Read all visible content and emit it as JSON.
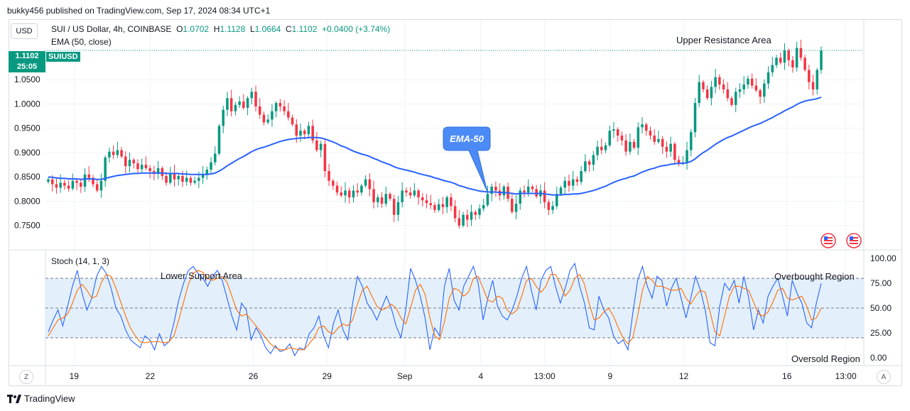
{
  "header": {
    "caption": "bukky456 published on TradingView.com, Sep 17, 2024 08:34 UTC+1",
    "currency": "USD",
    "symbol": "SUI / US Dollar, 4h, COINBASE",
    "open_label": "O",
    "open": "1.0702",
    "high_label": "H",
    "high": "1.1128",
    "low_label": "L",
    "low": "1.0664",
    "close_label": "C",
    "close": "1.1102",
    "change": "+0.0400 (+3.74%)",
    "indicator": "EMA (50, close)"
  },
  "price_tag": {
    "price": "1.1102",
    "countdown": "25:05",
    "symbol": "SUIUSD"
  },
  "branding": "TradingView",
  "buttons": {
    "zoom": "Z",
    "auto": "A"
  },
  "colors": {
    "up": "#089981",
    "down": "#f23645",
    "ema": "#2962ff",
    "stoch_k": "#2962ff",
    "stoch_d": "#ff6d00",
    "band": "#e3f0fb"
  },
  "chart_data": [
    {
      "type": "candlestick",
      "ylim": [
        0.7,
        1.17
      ],
      "y_ticks": [
        "1.0500",
        "1.0000",
        "0.9500",
        "0.9000",
        "0.8500",
        "0.8000",
        "0.7500"
      ],
      "y_tick_values": [
        1.05,
        1.0,
        0.95,
        0.9,
        0.85,
        0.8,
        0.75
      ],
      "x_ticks": [
        "19",
        "22",
        "26",
        "29",
        "Sep",
        "4",
        "13:00",
        "9",
        "12",
        "16",
        "13:00"
      ],
      "last_price": 1.1102,
      "annotations": [
        "Upper Resistance Area",
        "EMA-50"
      ],
      "closes": [
        0.845,
        0.835,
        0.828,
        0.838,
        0.832,
        0.826,
        0.842,
        0.838,
        0.83,
        0.855,
        0.848,
        0.835,
        0.822,
        0.842,
        0.89,
        0.902,
        0.895,
        0.905,
        0.892,
        0.872,
        0.885,
        0.878,
        0.866,
        0.875,
        0.868,
        0.862,
        0.856,
        0.868,
        0.852,
        0.838,
        0.858,
        0.845,
        0.852,
        0.84,
        0.848,
        0.838,
        0.842,
        0.848,
        0.855,
        0.865,
        0.88,
        0.898,
        0.955,
        0.988,
        1.012,
        0.985,
        0.998,
        1.005,
        0.992,
        1.012,
        1.025,
        0.995,
        0.978,
        0.962,
        0.968,
        0.985,
        1.002,
        0.995,
        0.985,
        0.972,
        0.958,
        0.935,
        0.945,
        0.938,
        0.955,
        0.925,
        0.905,
        0.918,
        0.862,
        0.842,
        0.832,
        0.818,
        0.812,
        0.822,
        0.808,
        0.822,
        0.818,
        0.832,
        0.845,
        0.825,
        0.798,
        0.808,
        0.795,
        0.815,
        0.805,
        0.772,
        0.798,
        0.822,
        0.818,
        0.812,
        0.822,
        0.808,
        0.802,
        0.796,
        0.792,
        0.782,
        0.794,
        0.788,
        0.808,
        0.79,
        0.765,
        0.75,
        0.772,
        0.762,
        0.778,
        0.772,
        0.785,
        0.792,
        0.815,
        0.83,
        0.822,
        0.812,
        0.83,
        0.805,
        0.778,
        0.795,
        0.822,
        0.818,
        0.83,
        0.825,
        0.81,
        0.822,
        0.798,
        0.782,
        0.79,
        0.815,
        0.828,
        0.842,
        0.832,
        0.845,
        0.84,
        0.862,
        0.882,
        0.875,
        0.895,
        0.912,
        0.905,
        0.915,
        0.945,
        0.948,
        0.935,
        0.925,
        0.902,
        0.922,
        0.91,
        0.952,
        0.958,
        0.945,
        0.935,
        0.922,
        0.928,
        0.912,
        0.902,
        0.918,
        0.885,
        0.878,
        0.88,
        0.905,
        0.942,
        1.002,
        1.045,
        1.03,
        1.012,
        1.035,
        1.055,
        1.04,
        1.03,
        1.012,
        0.998,
        1.025,
        1.03,
        1.04,
        1.052,
        1.038,
        1.028,
        1.015,
        1.042,
        1.065,
        1.08,
        1.095,
        1.085,
        1.11,
        1.09,
        1.075,
        1.115,
        1.095,
        1.07,
        1.045,
        1.03,
        1.07,
        1.11
      ],
      "ema": [
        0.85,
        0.849,
        0.848,
        0.847,
        0.847,
        0.846,
        0.846,
        0.846,
        0.845,
        0.846,
        0.846,
        0.846,
        0.845,
        0.845,
        0.847,
        0.849,
        0.851,
        0.853,
        0.854,
        0.855,
        0.856,
        0.857,
        0.857,
        0.858,
        0.858,
        0.858,
        0.858,
        0.858,
        0.858,
        0.857,
        0.857,
        0.857,
        0.857,
        0.856,
        0.856,
        0.855,
        0.855,
        0.855,
        0.855,
        0.855,
        0.856,
        0.858,
        0.862,
        0.867,
        0.873,
        0.878,
        0.883,
        0.888,
        0.892,
        0.897,
        0.902,
        0.906,
        0.909,
        0.911,
        0.914,
        0.917,
        0.92,
        0.923,
        0.925,
        0.927,
        0.928,
        0.929,
        0.93,
        0.93,
        0.931,
        0.931,
        0.931,
        0.93,
        0.928,
        0.925,
        0.922,
        0.918,
        0.914,
        0.911,
        0.907,
        0.903,
        0.9,
        0.897,
        0.895,
        0.892,
        0.888,
        0.885,
        0.881,
        0.878,
        0.875,
        0.871,
        0.868,
        0.866,
        0.864,
        0.862,
        0.86,
        0.857,
        0.855,
        0.853,
        0.851,
        0.848,
        0.846,
        0.843,
        0.841,
        0.839,
        0.836,
        0.832,
        0.83,
        0.827,
        0.825,
        0.823,
        0.821,
        0.82,
        0.819,
        0.819,
        0.819,
        0.818,
        0.818,
        0.817,
        0.816,
        0.815,
        0.816,
        0.816,
        0.816,
        0.816,
        0.816,
        0.816,
        0.815,
        0.814,
        0.813,
        0.813,
        0.813,
        0.814,
        0.814,
        0.815,
        0.815,
        0.816,
        0.818,
        0.82,
        0.822,
        0.825,
        0.828,
        0.831,
        0.835,
        0.839,
        0.842,
        0.845,
        0.847,
        0.85,
        0.852,
        0.856,
        0.86,
        0.863,
        0.866,
        0.868,
        0.871,
        0.873,
        0.874,
        0.876,
        0.877,
        0.878,
        0.878,
        0.879,
        0.882,
        0.887,
        0.894,
        0.9,
        0.905,
        0.911,
        0.917,
        0.922,
        0.927,
        0.931,
        0.934,
        0.938,
        0.942,
        0.946,
        0.95,
        0.954,
        0.957,
        0.96,
        0.964,
        0.968,
        0.972,
        0.977,
        0.981,
        0.986,
        0.99,
        0.994,
        0.999,
        1.003,
        1.006,
        1.008,
        1.009,
        1.011,
        1.014
      ]
    },
    {
      "type": "line",
      "title": "Stoch (14, 1, 3)",
      "ylim": [
        -8,
        108
      ],
      "y_ticks": [
        "100.00",
        "75.00",
        "50.00",
        "25.00",
        "0.00"
      ],
      "y_tick_values": [
        100,
        75,
        50,
        25,
        0
      ],
      "bands": [
        20,
        50,
        80
      ],
      "annotations": [
        "Lower Support Area",
        "Overbought Region",
        "Oversold Region"
      ],
      "series": [
        {
          "values": [
            26,
            38,
            48,
            32,
            52,
            72,
            88,
            65,
            48,
            60,
            82,
            92,
            85,
            70,
            50,
            42,
            28,
            18,
            14,
            10,
            22,
            18,
            8,
            24,
            12,
            16,
            35,
            58,
            75,
            88,
            92,
            85,
            80,
            72,
            82,
            88,
            78,
            60,
            42,
            28,
            55,
            48,
            18,
            30,
            22,
            10,
            4,
            12,
            6,
            8,
            14,
            2,
            10,
            8,
            24,
            30,
            42,
            22,
            10,
            34,
            48,
            28,
            18,
            55,
            82,
            72,
            55,
            48,
            38,
            50,
            62,
            50,
            32,
            20,
            48,
            90,
            78,
            62,
            40,
            8,
            30,
            22,
            72,
            90,
            58,
            48,
            72,
            82,
            92,
            75,
            38,
            60,
            78,
            52,
            42,
            38,
            48,
            62,
            80,
            92,
            68,
            48,
            78,
            88,
            92,
            72,
            55,
            70,
            88,
            95,
            72,
            55,
            30,
            28,
            62,
            48,
            40,
            22,
            14,
            18,
            8,
            45,
            78,
            92,
            72,
            60,
            82,
            78,
            52,
            70,
            80,
            60,
            40,
            60,
            82,
            68,
            48,
            15,
            12,
            52,
            75,
            68,
            78,
            55,
            82,
            60,
            28,
            48,
            35,
            62,
            72,
            80,
            62,
            42,
            78,
            65,
            55,
            35,
            30,
            55,
            75
          ]
        },
        {
          "values": [
            22,
            30,
            38,
            40,
            44,
            55,
            68,
            74,
            68,
            60,
            62,
            76,
            84,
            82,
            70,
            56,
            42,
            30,
            22,
            16,
            15,
            16,
            16,
            16,
            15,
            16,
            22,
            38,
            56,
            74,
            85,
            88,
            86,
            80,
            78,
            80,
            82,
            76,
            62,
            48,
            42,
            44,
            38,
            32,
            26,
            20,
            14,
            10,
            8,
            8,
            10,
            9,
            8,
            8,
            14,
            20,
            30,
            32,
            26,
            24,
            30,
            34,
            32,
            38,
            54,
            68,
            72,
            62,
            52,
            48,
            50,
            54,
            50,
            40,
            34,
            50,
            68,
            74,
            64,
            40,
            22,
            18,
            36,
            60,
            70,
            68,
            62,
            66,
            80,
            82,
            70,
            58,
            56,
            62,
            60,
            48,
            44,
            48,
            62,
            78,
            80,
            72,
            66,
            72,
            84,
            84,
            74,
            62,
            68,
            80,
            84,
            74,
            54,
            38,
            40,
            46,
            50,
            42,
            30,
            20,
            14,
            20,
            42,
            68,
            82,
            78,
            72,
            72,
            70,
            68,
            68,
            70,
            60,
            54,
            62,
            68,
            66,
            46,
            26,
            22,
            42,
            62,
            72,
            72,
            70,
            68,
            56,
            44,
            42,
            46,
            56,
            68,
            70,
            60,
            58,
            60,
            62,
            52,
            38,
            40,
            50
          ]
        }
      ],
      "x_ticks": [
        "19",
        "22",
        "26",
        "29",
        "Sep",
        "4",
        "13:00",
        "9",
        "12",
        "16",
        "13:00"
      ]
    }
  ]
}
